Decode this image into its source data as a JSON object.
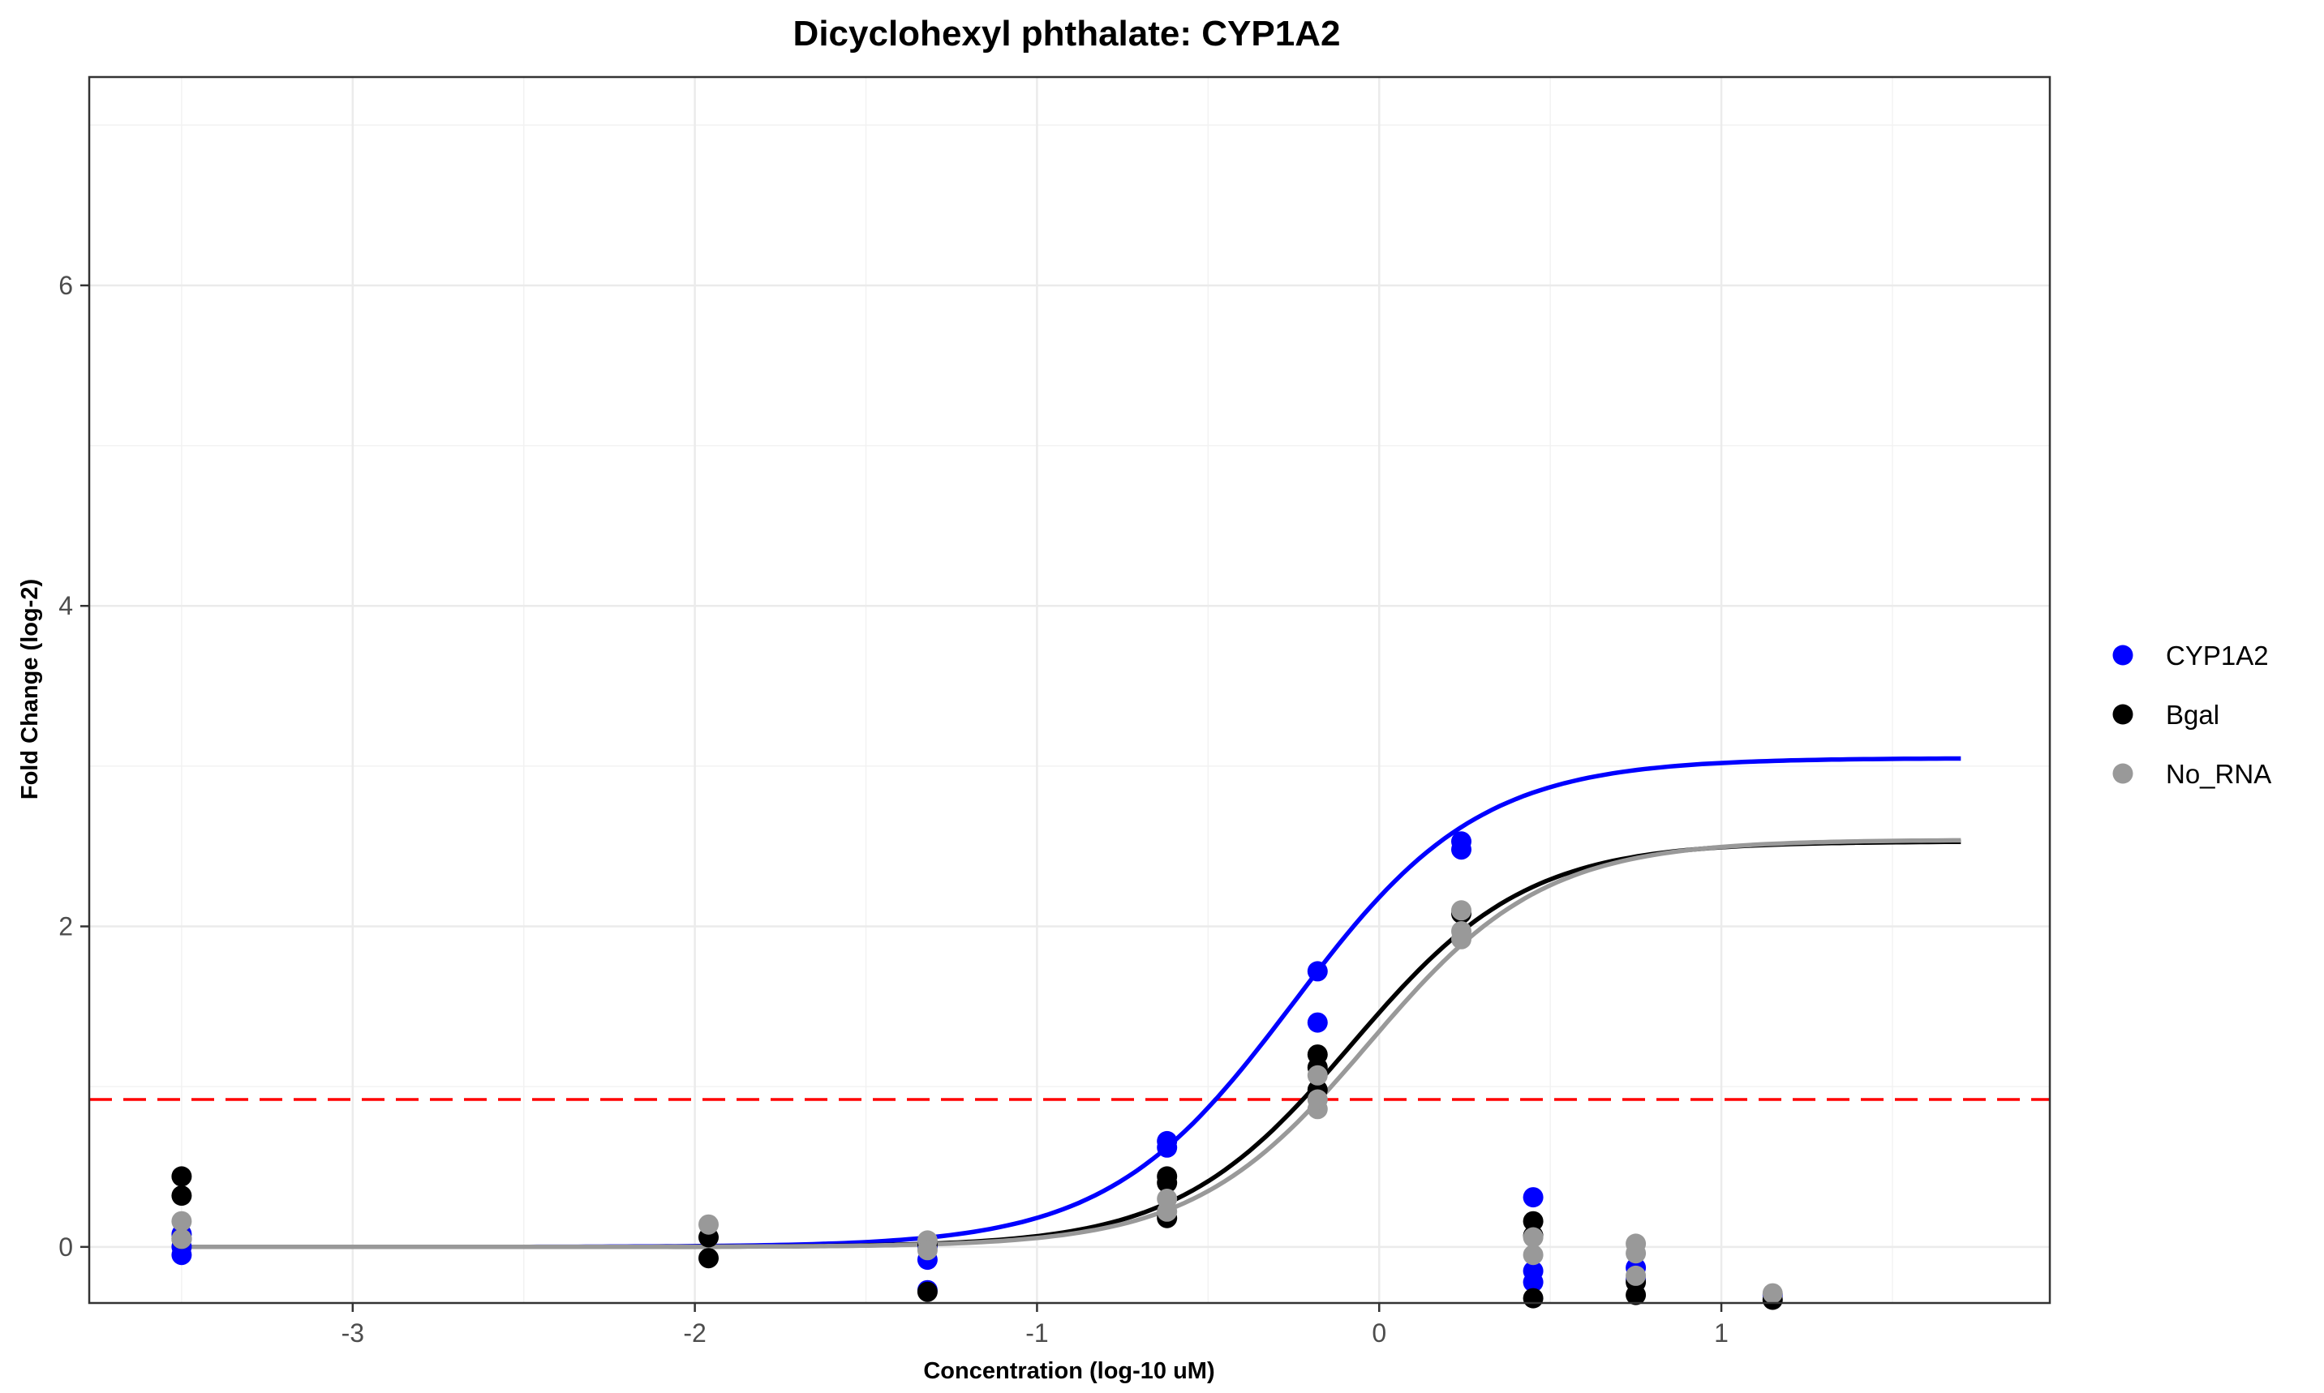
{
  "chart_data": {
    "type": "scatter",
    "title": "Dicyclohexyl phthalate: CYP1A2",
    "xlabel": "Concentration (log-10 uM)",
    "ylabel": "Fold Change (log-2)",
    "xlim": [
      -3.77,
      1.96
    ],
    "ylim": [
      -0.35,
      7.3
    ],
    "xticks": [
      -3,
      -2,
      -1,
      0,
      1
    ],
    "yticks": [
      0,
      2,
      4,
      6
    ],
    "grid": true,
    "legend_position": "right",
    "threshold": {
      "y": 0.92,
      "color": "#ff0000",
      "style": "dashed"
    },
    "series": [
      {
        "name": "CYP1A2",
        "color": "#0000ff",
        "curve": {
          "bottom": 0,
          "top": 3.05,
          "ec50_log": -0.25,
          "hill_slope": 1.6,
          "x_start": -3.5,
          "x_end": 1.7
        },
        "points": [
          [
            -3.5,
            -0.05
          ],
          [
            -3.5,
            0.0
          ],
          [
            -3.5,
            0.08
          ],
          [
            -1.32,
            -0.27
          ],
          [
            -1.32,
            -0.08
          ],
          [
            -1.32,
            0.0
          ],
          [
            -0.62,
            0.62
          ],
          [
            -0.62,
            0.66
          ],
          [
            -0.18,
            1.4
          ],
          [
            -0.18,
            1.72
          ],
          [
            0.24,
            2.48
          ],
          [
            0.24,
            2.53
          ],
          [
            0.45,
            -0.15
          ],
          [
            0.45,
            -0.22
          ],
          [
            0.45,
            0.31
          ],
          [
            0.75,
            -0.13
          ],
          [
            0.75,
            -0.2
          ],
          [
            1.15,
            -0.3
          ]
        ]
      },
      {
        "name": "Bgal",
        "color": "#000000",
        "curve": {
          "bottom": 0,
          "top": 2.53,
          "ec50_log": -0.08,
          "hill_slope": 1.7,
          "x_start": -3.5,
          "x_end": 1.7
        },
        "points": [
          [
            -3.5,
            0.44
          ],
          [
            -3.5,
            0.32
          ],
          [
            -3.5,
            0.05
          ],
          [
            -1.96,
            -0.07
          ],
          [
            -1.96,
            0.06
          ],
          [
            -1.32,
            -0.28
          ],
          [
            -1.32,
            0.02
          ],
          [
            -0.62,
            0.18
          ],
          [
            -0.62,
            0.4
          ],
          [
            -0.62,
            0.44
          ],
          [
            -0.18,
            0.98
          ],
          [
            -0.18,
            1.12
          ],
          [
            -0.18,
            1.2
          ],
          [
            0.24,
            2.08
          ],
          [
            0.45,
            0.16
          ],
          [
            0.45,
            0.07
          ],
          [
            0.45,
            -0.32
          ],
          [
            0.75,
            -0.22
          ],
          [
            0.75,
            -0.3
          ],
          [
            1.15,
            -0.33
          ]
        ]
      },
      {
        "name": "No_RNA",
        "color": "#999999",
        "curve": {
          "bottom": 0,
          "top": 2.54,
          "ec50_log": -0.03,
          "hill_slope": 1.7,
          "x_start": -3.5,
          "x_end": 1.7
        },
        "points": [
          [
            -3.5,
            0.16
          ],
          [
            -3.5,
            0.05
          ],
          [
            -1.96,
            0.14
          ],
          [
            -1.32,
            0.04
          ],
          [
            -1.32,
            -0.02
          ],
          [
            -0.62,
            0.22
          ],
          [
            -0.62,
            0.3
          ],
          [
            -0.18,
            0.86
          ],
          [
            -0.18,
            0.92
          ],
          [
            -0.18,
            1.07
          ],
          [
            0.24,
            1.92
          ],
          [
            0.24,
            1.97
          ],
          [
            0.24,
            2.1
          ],
          [
            0.45,
            0.06
          ],
          [
            0.45,
            -0.05
          ],
          [
            0.75,
            0.02
          ],
          [
            0.75,
            -0.04
          ],
          [
            0.75,
            -0.18
          ],
          [
            1.15,
            -0.29
          ]
        ]
      }
    ]
  }
}
